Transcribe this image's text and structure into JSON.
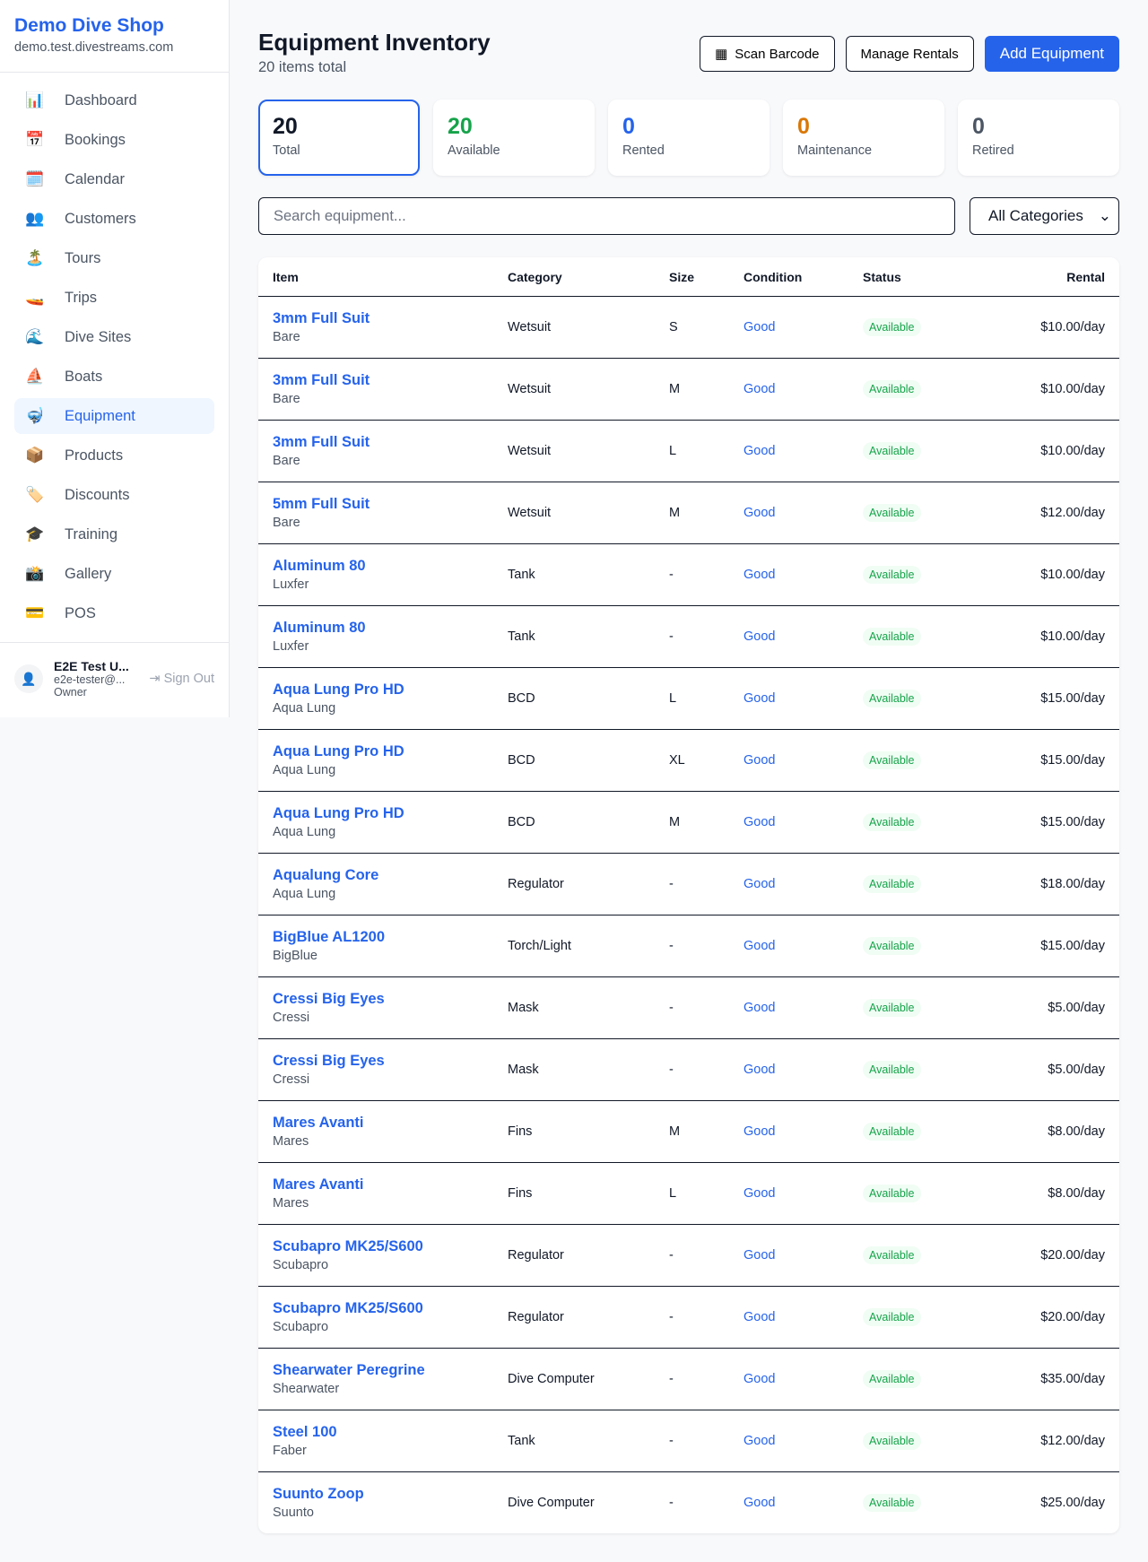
{
  "sidebar": {
    "shop_name": "Demo Dive Shop",
    "domain": "demo.test.divestreams.com",
    "items": [
      {
        "label": "Dashboard",
        "icon": "📊"
      },
      {
        "label": "Bookings",
        "icon": "📅"
      },
      {
        "label": "Calendar",
        "icon": "🗓️"
      },
      {
        "label": "Customers",
        "icon": "👥"
      },
      {
        "label": "Tours",
        "icon": "🏝️"
      },
      {
        "label": "Trips",
        "icon": "🚤"
      },
      {
        "label": "Dive Sites",
        "icon": "🌊"
      },
      {
        "label": "Boats",
        "icon": "⛵"
      },
      {
        "label": "Equipment",
        "icon": "🤿"
      },
      {
        "label": "Products",
        "icon": "📦"
      },
      {
        "label": "Discounts",
        "icon": "🏷️"
      },
      {
        "label": "Training",
        "icon": "🎓"
      },
      {
        "label": "Gallery",
        "icon": "📸"
      },
      {
        "label": "POS",
        "icon": "💳"
      }
    ],
    "active": "Equipment",
    "user": {
      "name": "E2E Test U...",
      "email": "e2e-tester@...",
      "role": "Owner",
      "sign_out": "Sign Out"
    }
  },
  "header": {
    "title": "Equipment Inventory",
    "subtitle": "20 items total",
    "scan": "Scan Barcode",
    "manage": "Manage Rentals",
    "add": "Add Equipment"
  },
  "stats": [
    {
      "value": "20",
      "label": "Total",
      "color": "#111827"
    },
    {
      "value": "20",
      "label": "Available",
      "color": "#16a34a"
    },
    {
      "value": "0",
      "label": "Rented",
      "color": "#2563eb"
    },
    {
      "value": "0",
      "label": "Maintenance",
      "color": "#d97706"
    },
    {
      "value": "0",
      "label": "Retired",
      "color": "#4b5563"
    }
  ],
  "filters": {
    "search_placeholder": "Search equipment...",
    "category": "All Categories"
  },
  "table": {
    "headers": [
      "Item",
      "Category",
      "Size",
      "Condition",
      "Status",
      "Rental"
    ],
    "rows": [
      [
        "3mm Full Suit",
        "Bare",
        "Wetsuit",
        "S",
        "Good",
        "Available",
        "$10.00/day"
      ],
      [
        "3mm Full Suit",
        "Bare",
        "Wetsuit",
        "M",
        "Good",
        "Available",
        "$10.00/day"
      ],
      [
        "3mm Full Suit",
        "Bare",
        "Wetsuit",
        "L",
        "Good",
        "Available",
        "$10.00/day"
      ],
      [
        "5mm Full Suit",
        "Bare",
        "Wetsuit",
        "M",
        "Good",
        "Available",
        "$12.00/day"
      ],
      [
        "Aluminum 80",
        "Luxfer",
        "Tank",
        "-",
        "Good",
        "Available",
        "$10.00/day"
      ],
      [
        "Aluminum 80",
        "Luxfer",
        "Tank",
        "-",
        "Good",
        "Available",
        "$10.00/day"
      ],
      [
        "Aqua Lung Pro HD",
        "Aqua Lung",
        "BCD",
        "L",
        "Good",
        "Available",
        "$15.00/day"
      ],
      [
        "Aqua Lung Pro HD",
        "Aqua Lung",
        "BCD",
        "XL",
        "Good",
        "Available",
        "$15.00/day"
      ],
      [
        "Aqua Lung Pro HD",
        "Aqua Lung",
        "BCD",
        "M",
        "Good",
        "Available",
        "$15.00/day"
      ],
      [
        "Aqualung Core",
        "Aqua Lung",
        "Regulator",
        "-",
        "Good",
        "Available",
        "$18.00/day"
      ],
      [
        "BigBlue AL1200",
        "BigBlue",
        "Torch/Light",
        "-",
        "Good",
        "Available",
        "$15.00/day"
      ],
      [
        "Cressi Big Eyes",
        "Cressi",
        "Mask",
        "-",
        "Good",
        "Available",
        "$5.00/day"
      ],
      [
        "Cressi Big Eyes",
        "Cressi",
        "Mask",
        "-",
        "Good",
        "Available",
        "$5.00/day"
      ],
      [
        "Mares Avanti",
        "Mares",
        "Fins",
        "M",
        "Good",
        "Available",
        "$8.00/day"
      ],
      [
        "Mares Avanti",
        "Mares",
        "Fins",
        "L",
        "Good",
        "Available",
        "$8.00/day"
      ],
      [
        "Scubapro MK25/S600",
        "Scubapro",
        "Regulator",
        "-",
        "Good",
        "Available",
        "$20.00/day"
      ],
      [
        "Scubapro MK25/S600",
        "Scubapro",
        "Regulator",
        "-",
        "Good",
        "Available",
        "$20.00/day"
      ],
      [
        "Shearwater Peregrine",
        "Shearwater",
        "Dive Computer",
        "-",
        "Good",
        "Available",
        "$35.00/day"
      ],
      [
        "Steel 100",
        "Faber",
        "Tank",
        "-",
        "Good",
        "Available",
        "$12.00/day"
      ],
      [
        "Suunto Zoop",
        "Suunto",
        "Dive Computer",
        "-",
        "Good",
        "Available",
        "$25.00/day"
      ]
    ]
  }
}
